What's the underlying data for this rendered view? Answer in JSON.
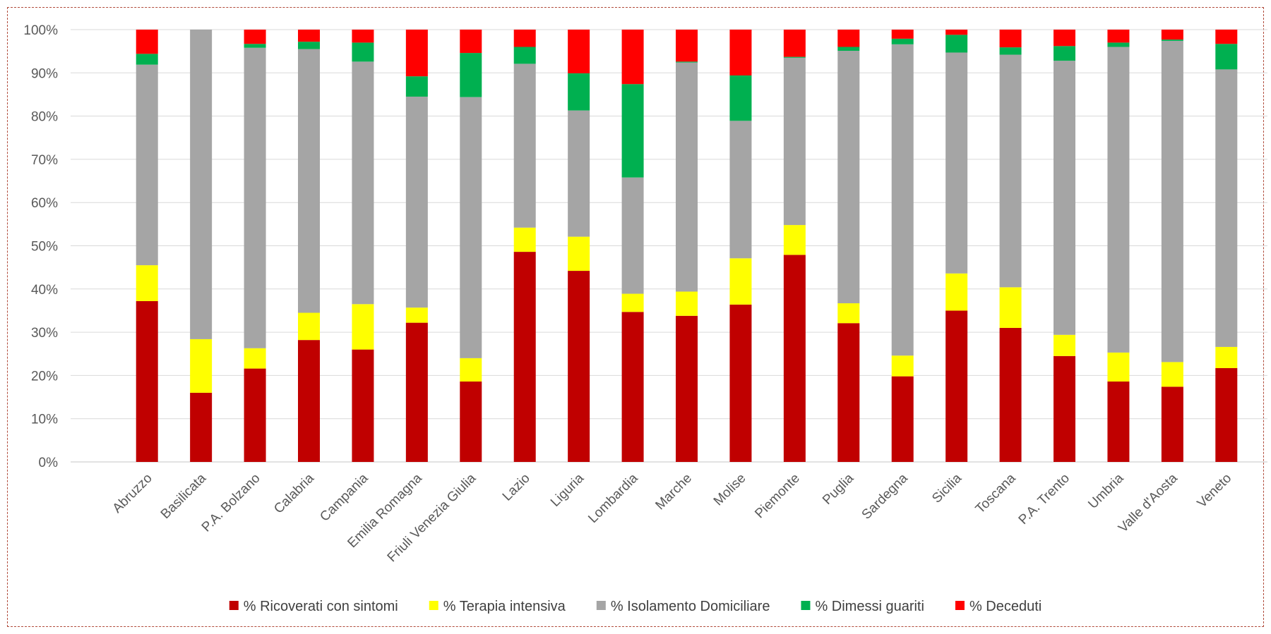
{
  "chart_data": {
    "type": "bar",
    "stacked": true,
    "percent": true,
    "categories": [
      "Abruzzo",
      "Basilicata",
      "P.A. Bolzano",
      "Calabria",
      "Campania",
      "Emilia Romagna",
      "Friuli Venezia Giulia",
      "Lazio",
      "Liguria",
      "Lombardia",
      "Marche",
      "Molise",
      "Piemonte",
      "Puglia",
      "Sardegna",
      "Sicilia",
      "Toscana",
      "P.A. Trento",
      "Umbria",
      "Valle d'Aosta",
      "Veneto"
    ],
    "series": [
      {
        "name": "% Ricoverati con sintomi",
        "color": "#C00000",
        "values": [
          37.2,
          16.0,
          21.6,
          28.2,
          26.0,
          32.2,
          18.6,
          48.6,
          44.2,
          34.7,
          33.8,
          36.4,
          47.9,
          32.1,
          19.8,
          35.0,
          31.0,
          24.5,
          18.6,
          17.4,
          21.7
        ]
      },
      {
        "name": "% Terapia intensiva",
        "color": "#FFFF00",
        "values": [
          8.3,
          12.4,
          4.7,
          6.3,
          10.5,
          3.5,
          5.4,
          5.6,
          7.9,
          4.2,
          5.6,
          10.7,
          6.9,
          4.6,
          4.8,
          8.6,
          9.4,
          4.9,
          6.7,
          5.7,
          4.9
        ]
      },
      {
        "name": "% Isolamento Domiciliare",
        "color": "#A5A5A5",
        "values": [
          46.4,
          71.6,
          69.5,
          61.0,
          56.1,
          48.8,
          60.4,
          37.9,
          29.2,
          26.9,
          53.0,
          31.8,
          38.7,
          58.4,
          72.0,
          51.1,
          53.8,
          63.4,
          70.7,
          74.3,
          64.2
        ]
      },
      {
        "name": "% Dimessi guariti",
        "color": "#00B050",
        "values": [
          2.5,
          0.0,
          0.9,
          1.7,
          4.4,
          4.7,
          10.2,
          3.9,
          8.6,
          21.6,
          0.2,
          10.5,
          0.2,
          0.9,
          1.3,
          4.1,
          1.7,
          3.4,
          1.0,
          0.3,
          5.9
        ]
      },
      {
        "name": "% Deceduti",
        "color": "#FF0000",
        "values": [
          5.6,
          0.0,
          3.3,
          2.8,
          3.0,
          10.8,
          5.4,
          4.0,
          10.1,
          12.6,
          7.4,
          10.6,
          6.3,
          4.0,
          2.1,
          1.2,
          4.1,
          3.8,
          3.0,
          2.3,
          3.3
        ]
      }
    ],
    "y_ticks": [
      "0%",
      "10%",
      "20%",
      "30%",
      "40%",
      "50%",
      "60%",
      "70%",
      "80%",
      "90%",
      "100%"
    ],
    "ylim": [
      0,
      100
    ],
    "grid": true,
    "legend_position": "bottom",
    "title": "",
    "xlabel": "",
    "ylabel": "",
    "axis_color": "#D9D9D9",
    "frame_border_color": "#B04A3A"
  }
}
